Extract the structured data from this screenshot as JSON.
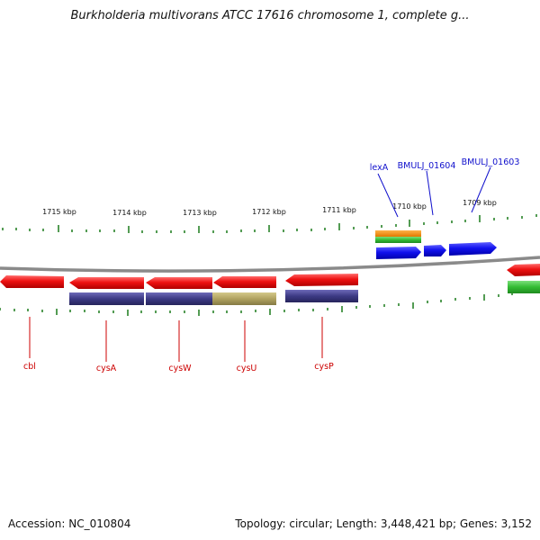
{
  "title": "Burkholderia multivorans ATCC 17616 chromosome 1, complete g...",
  "accession": "Accession: NC_010804",
  "summary": "Topology: circular; Length: 3,448,421 bp; Genes: 3,152",
  "colors": {
    "backbone": "#8a8a8a",
    "tick": "#1a7a1a",
    "gene_red": "#ee1111",
    "gene_blue": "#1111ee",
    "gene_orange": "#f08c00",
    "gene_green": "#33bb33",
    "gene_purple": "#3c3a84",
    "gene_khaki": "#b0a260",
    "label_red": "#cc0000",
    "label_blue": "#1010cc"
  },
  "kbp_labels": [
    "1715 kbp",
    "1714 kbp",
    "1713 kbp",
    "1712 kbp",
    "1711 kbp",
    "1710 kbp",
    "1709 kbp"
  ],
  "gene_labels_bottom": [
    "cbl",
    "cysA",
    "cysW",
    "cysU",
    "cysP"
  ],
  "gene_labels_top": [
    "lexA",
    "BMULJ_01604",
    "BMULJ_01603"
  ]
}
